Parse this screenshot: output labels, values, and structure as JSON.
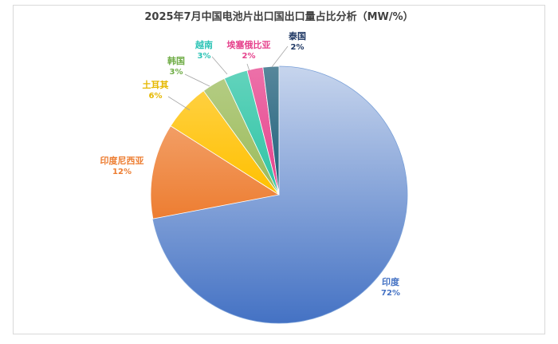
{
  "title": "2025年7月中国电池片出口国出口量占比分析（MW/%）",
  "chart_data": {
    "type": "pie",
    "title": "2025年7月中国电池片出口国出口量占比分析（MW/%）",
    "unit": "%",
    "categories": [
      "印度",
      "印度尼西亚",
      "土耳其",
      "韩国",
      "越南",
      "埃塞俄比亚",
      "泰国"
    ],
    "values": [
      72,
      12,
      6,
      3,
      3,
      2,
      2
    ],
    "value_labels": [
      "72%",
      "12%",
      "6%",
      "3%",
      "3%",
      "2%",
      "2%"
    ],
    "colors": {
      "印度": "#4472c4",
      "印度尼西亚": "#ed7d31",
      "土耳其": "#ffc000",
      "韩国": "#9bbb59",
      "越南": "#2ec4a5",
      "埃塞俄比亚": "#e6418c",
      "泰国": "#1f5f7a"
    },
    "label_colors": {
      "印度": "#4472c4",
      "印度尼西亚": "#ed7d31",
      "土耳其": "#e6b800",
      "韩国": "#70ad47",
      "越南": "#2ec4b6",
      "埃塞俄比亚": "#e6418c",
      "泰国": "#1f3864"
    },
    "legend": "none"
  }
}
